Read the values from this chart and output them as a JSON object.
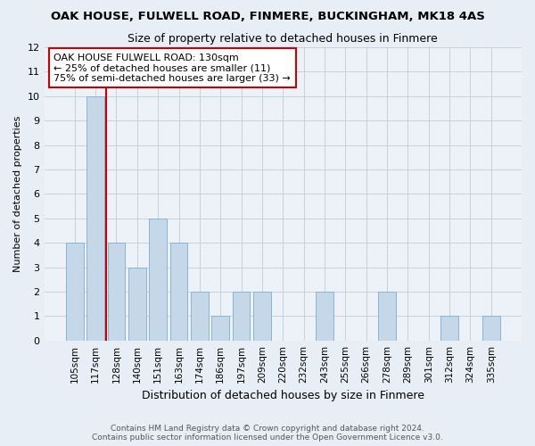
{
  "title": "OAK HOUSE, FULWELL ROAD, FINMERE, BUCKINGHAM, MK18 4AS",
  "subtitle": "Size of property relative to detached houses in Finmere",
  "xlabel": "Distribution of detached houses by size in Finmere",
  "ylabel": "Number of detached properties",
  "bar_labels": [
    "105sqm",
    "117sqm",
    "128sqm",
    "140sqm",
    "151sqm",
    "163sqm",
    "174sqm",
    "186sqm",
    "197sqm",
    "209sqm",
    "220sqm",
    "232sqm",
    "243sqm",
    "255sqm",
    "266sqm",
    "278sqm",
    "289sqm",
    "301sqm",
    "312sqm",
    "324sqm",
    "335sqm"
  ],
  "bar_values": [
    4,
    10,
    4,
    3,
    5,
    4,
    2,
    1,
    2,
    2,
    0,
    0,
    2,
    0,
    0,
    2,
    0,
    0,
    1,
    0,
    1
  ],
  "bar_color": "#c5d8ea",
  "bar_edgecolor": "#8ab4d4",
  "vline_index": 2,
  "vline_color": "#cc0000",
  "annotation_text": "OAK HOUSE FULWELL ROAD: 130sqm\n← 25% of detached houses are smaller (11)\n75% of semi-detached houses are larger (33) →",
  "annotation_box_color": "#ffffff",
  "annotation_box_edgecolor": "#cc0000",
  "ylim": [
    0,
    12
  ],
  "yticks": [
    0,
    1,
    2,
    3,
    4,
    5,
    6,
    7,
    8,
    9,
    10,
    11,
    12
  ],
  "footer1": "Contains HM Land Registry data © Crown copyright and database right 2024.",
  "footer2": "Contains public sector information licensed under the Open Government Licence v3.0.",
  "bg_color": "#e8eef5",
  "plot_bg_color": "#edf2f8",
  "title_fontsize": 9.5,
  "subtitle_fontsize": 9,
  "ylabel_fontsize": 8,
  "xlabel_fontsize": 9,
  "tick_fontsize": 8,
  "xtick_fontsize": 7.5,
  "footer_fontsize": 6.5,
  "annot_fontsize": 8
}
